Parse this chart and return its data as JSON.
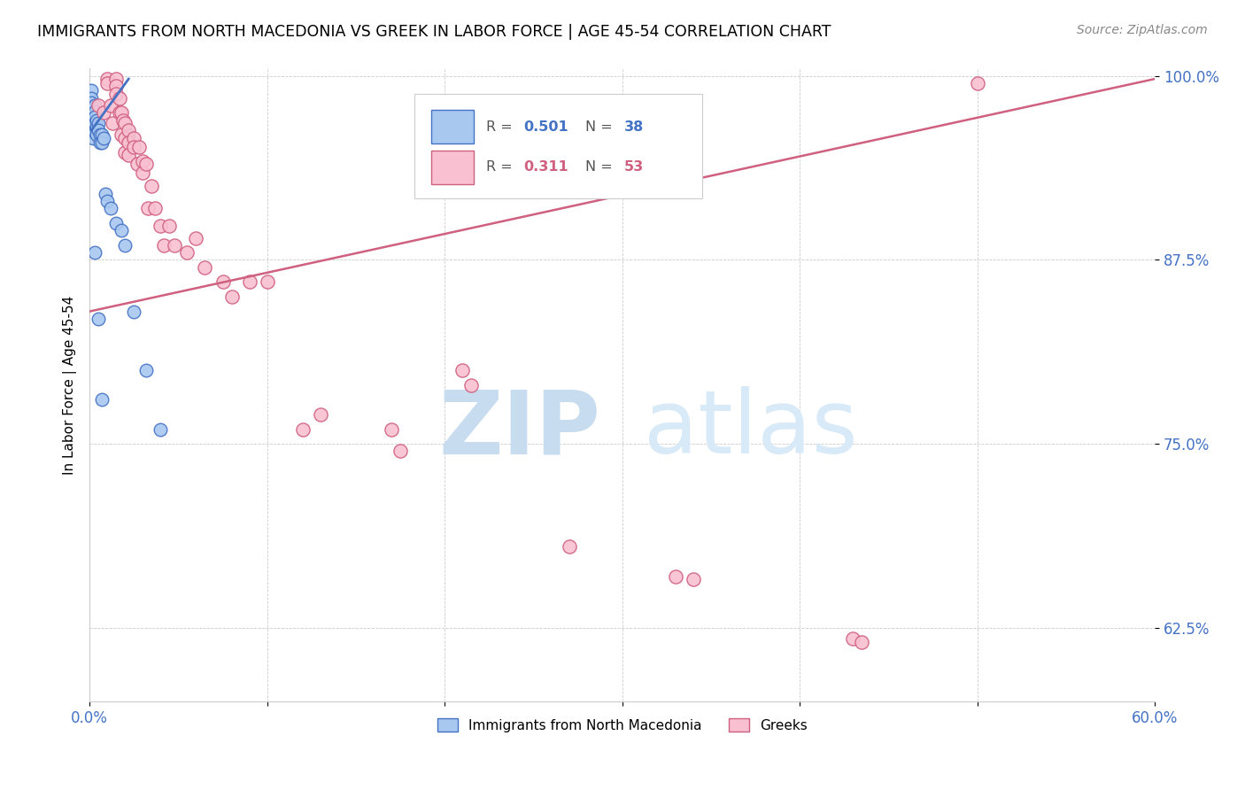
{
  "title": "IMMIGRANTS FROM NORTH MACEDONIA VS GREEK IN LABOR FORCE | AGE 45-54 CORRELATION CHART",
  "source": "Source: ZipAtlas.com",
  "ylabel": "In Labor Force | Age 45-54",
  "legend_label1": "Immigrants from North Macedonia",
  "legend_label2": "Greeks",
  "R1": 0.501,
  "N1": 38,
  "R2": 0.311,
  "N2": 53,
  "xlim": [
    0.0,
    0.6
  ],
  "ylim": [
    0.575,
    1.005
  ],
  "yticks": [
    0.625,
    0.75,
    0.875,
    1.0
  ],
  "ytick_labels": [
    "62.5%",
    "75.0%",
    "87.5%",
    "100.0%"
  ],
  "xticks": [
    0.0,
    0.1,
    0.2,
    0.3,
    0.4,
    0.5,
    0.6
  ],
  "xtick_labels": [
    "0.0%",
    "",
    "",
    "",
    "",
    "",
    "60.0%"
  ],
  "color_blue": "#A8C8F0",
  "color_pink": "#F8C0D0",
  "line_color_blue": "#4472C4",
  "line_color_pink": "#D06080",
  "blue_points": [
    [
      0.001,
      0.99
    ],
    [
      0.001,
      0.985
    ],
    [
      0.001,
      0.982
    ],
    [
      0.002,
      0.978
    ],
    [
      0.002,
      0.975
    ],
    [
      0.002,
      0.971
    ],
    [
      0.002,
      0.968
    ],
    [
      0.002,
      0.965
    ],
    [
      0.002,
      0.962
    ],
    [
      0.002,
      0.958
    ],
    [
      0.003,
      0.98
    ],
    [
      0.003,
      0.976
    ],
    [
      0.003,
      0.972
    ],
    [
      0.003,
      0.968
    ],
    [
      0.003,
      0.962
    ],
    [
      0.004,
      0.97
    ],
    [
      0.004,
      0.965
    ],
    [
      0.004,
      0.96
    ],
    [
      0.005,
      0.968
    ],
    [
      0.005,
      0.963
    ],
    [
      0.006,
      0.96
    ],
    [
      0.006,
      0.955
    ],
    [
      0.007,
      0.96
    ],
    [
      0.007,
      0.955
    ],
    [
      0.008,
      0.958
    ],
    [
      0.009,
      0.92
    ],
    [
      0.01,
      0.915
    ],
    [
      0.012,
      0.91
    ],
    [
      0.015,
      0.9
    ],
    [
      0.018,
      0.895
    ],
    [
      0.02,
      0.885
    ],
    [
      0.022,
      0.96
    ],
    [
      0.025,
      0.84
    ],
    [
      0.032,
      0.8
    ],
    [
      0.04,
      0.76
    ],
    [
      0.003,
      0.88
    ],
    [
      0.005,
      0.835
    ],
    [
      0.007,
      0.78
    ]
  ],
  "pink_points": [
    [
      0.005,
      0.98
    ],
    [
      0.008,
      0.975
    ],
    [
      0.01,
      0.998
    ],
    [
      0.01,
      0.995
    ],
    [
      0.012,
      0.98
    ],
    [
      0.013,
      0.968
    ],
    [
      0.015,
      0.998
    ],
    [
      0.015,
      0.993
    ],
    [
      0.015,
      0.988
    ],
    [
      0.017,
      0.985
    ],
    [
      0.017,
      0.975
    ],
    [
      0.018,
      0.975
    ],
    [
      0.018,
      0.96
    ],
    [
      0.019,
      0.97
    ],
    [
      0.02,
      0.968
    ],
    [
      0.02,
      0.958
    ],
    [
      0.02,
      0.948
    ],
    [
      0.022,
      0.963
    ],
    [
      0.022,
      0.955
    ],
    [
      0.022,
      0.946
    ],
    [
      0.025,
      0.958
    ],
    [
      0.025,
      0.952
    ],
    [
      0.027,
      0.94
    ],
    [
      0.028,
      0.952
    ],
    [
      0.03,
      0.942
    ],
    [
      0.03,
      0.934
    ],
    [
      0.032,
      0.94
    ],
    [
      0.033,
      0.91
    ],
    [
      0.035,
      0.925
    ],
    [
      0.037,
      0.91
    ],
    [
      0.04,
      0.898
    ],
    [
      0.042,
      0.885
    ],
    [
      0.045,
      0.898
    ],
    [
      0.048,
      0.885
    ],
    [
      0.055,
      0.88
    ],
    [
      0.06,
      0.89
    ],
    [
      0.065,
      0.87
    ],
    [
      0.075,
      0.86
    ],
    [
      0.08,
      0.85
    ],
    [
      0.09,
      0.86
    ],
    [
      0.1,
      0.86
    ],
    [
      0.12,
      0.76
    ],
    [
      0.13,
      0.77
    ],
    [
      0.17,
      0.76
    ],
    [
      0.175,
      0.745
    ],
    [
      0.21,
      0.8
    ],
    [
      0.215,
      0.79
    ],
    [
      0.27,
      0.68
    ],
    [
      0.33,
      0.66
    ],
    [
      0.34,
      0.658
    ],
    [
      0.43,
      0.618
    ],
    [
      0.435,
      0.615
    ],
    [
      0.5,
      0.995
    ]
  ],
  "blue_line": [
    [
      0.001,
      0.963
    ],
    [
      0.022,
      0.998
    ]
  ],
  "pink_line": [
    [
      0.0,
      0.84
    ],
    [
      0.6,
      0.998
    ]
  ]
}
